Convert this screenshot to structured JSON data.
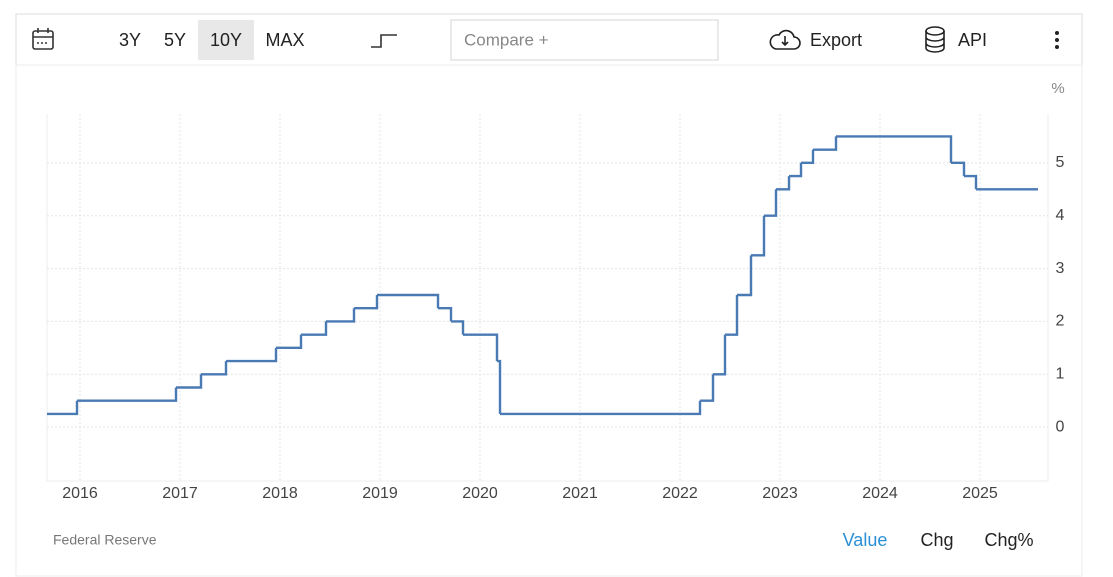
{
  "toolbar": {
    "ranges": [
      "3Y",
      "5Y",
      "10Y",
      "MAX"
    ],
    "compare": "Compare +",
    "export": "Export",
    "api": "API"
  },
  "chart_data": {
    "type": "line",
    "step": true,
    "unit": "%",
    "color": "#4a7ab4",
    "grid": true,
    "x": [
      2015.67,
      2015.97,
      2016.96,
      2017.21,
      2017.46,
      2017.96,
      2018.21,
      2018.46,
      2018.74,
      2018.97,
      2019.58,
      2019.71,
      2019.83,
      2020.17,
      2020.2,
      2022.2,
      2022.33,
      2022.45,
      2022.57,
      2022.71,
      2022.84,
      2022.96,
      2023.09,
      2023.21,
      2023.33,
      2023.56,
      2024.71,
      2024.84,
      2024.96,
      2025.58
    ],
    "values": [
      0.25,
      0.5,
      0.75,
      1.0,
      1.25,
      1.5,
      1.75,
      2.0,
      2.25,
      2.5,
      2.25,
      2.0,
      1.75,
      1.25,
      0.25,
      0.5,
      1.0,
      1.75,
      2.5,
      3.25,
      4.0,
      4.5,
      4.75,
      5.0,
      5.25,
      5.5,
      5.0,
      4.75,
      4.5,
      4.5
    ],
    "xlim": [
      2015.67,
      2025.68
    ],
    "xticks": [
      2016,
      2017,
      2018,
      2019,
      2020,
      2021,
      2022,
      2023,
      2024,
      2025
    ],
    "ylim": [
      -1,
      6
    ],
    "yticks": [
      0,
      1,
      2,
      3,
      4,
      5
    ]
  },
  "footer": {
    "source": "Federal Reserve",
    "views": [
      "Value",
      "Chg",
      "Chg%"
    ]
  }
}
